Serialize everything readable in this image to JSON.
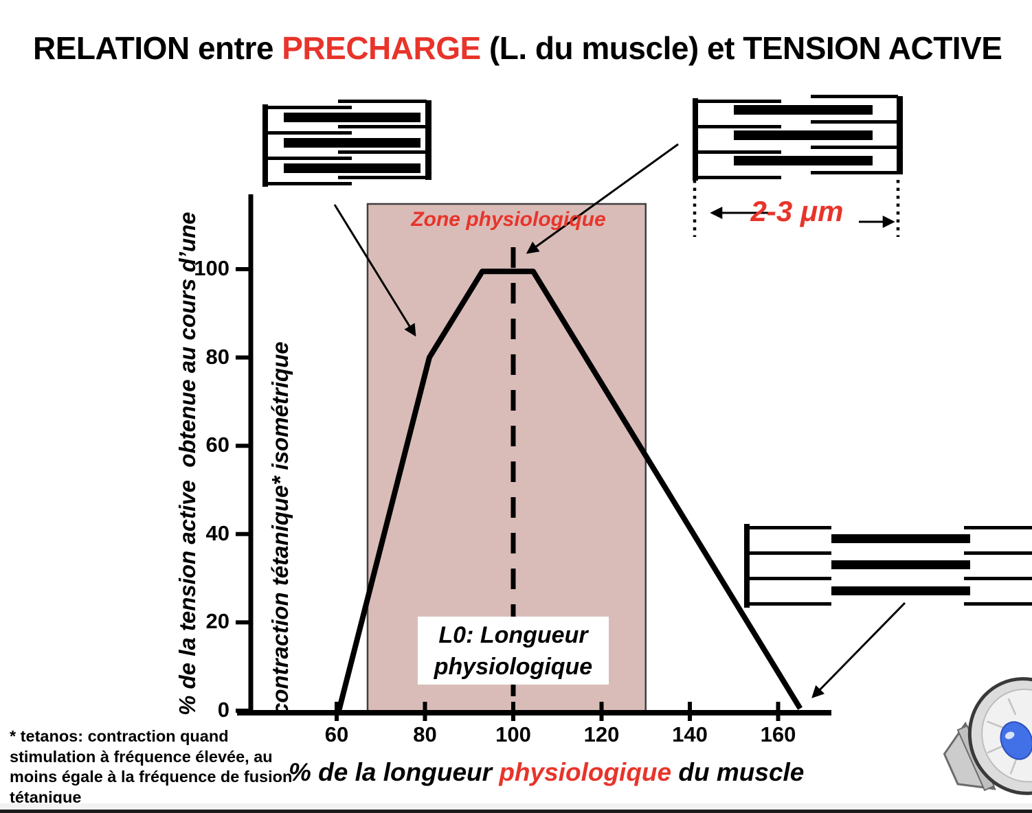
{
  "page": {
    "title": {
      "part1": "RELATION entre ",
      "highlight": "PRECHARGE",
      "part2": " (L. du muscle) et TENSION ACTIVE"
    },
    "footnote": "* tetanos: contraction quand\nstimulation à fréquence élevée, au\nmoins égale à la fréquence de fusion\ntétanique"
  },
  "colors": {
    "accent_red": "#e8342a",
    "zone_fill": "#d9bcb8",
    "zone_border": "#3f3f3f",
    "curve": "#000000",
    "bottom_bar": "#1b1b1b"
  },
  "icons": {
    "speaker": "speaker-icon"
  },
  "chart_data": {
    "type": "line",
    "title": "RELATION entre PRECHARGE (L. du muscle) et TENSION ACTIVE",
    "xlabel_parts": {
      "pre": "% de la longueur ",
      "highlight": "physiologique",
      "post": " du muscle"
    },
    "ylabel_line1": "% de la tension active  obtenue au cours d’une",
    "ylabel_line2": "contraction tétanique* isométrique",
    "x_ticks": [
      60,
      80,
      100,
      120,
      140,
      160
    ],
    "y_ticks": [
      0,
      20,
      40,
      60,
      80,
      100
    ],
    "xlim": [
      40,
      172
    ],
    "ylim": [
      0,
      117
    ],
    "grid": false,
    "legend": "none",
    "series": [
      {
        "name": "tension active tétanique isométrique",
        "points": [
          [
            60.5,
            0
          ],
          [
            81,
            80
          ],
          [
            93,
            99.5
          ],
          [
            104.5,
            99.5
          ],
          [
            165,
            0.5
          ]
        ]
      }
    ],
    "zone": {
      "label": "Zone physiologique",
      "x_start": 67,
      "x_end": 130
    },
    "reference_line": {
      "x": 100,
      "label": "L0: Longueur\nphysiologique"
    },
    "annotations": {
      "sarcomere_length_label": "2-3 μm"
    }
  }
}
